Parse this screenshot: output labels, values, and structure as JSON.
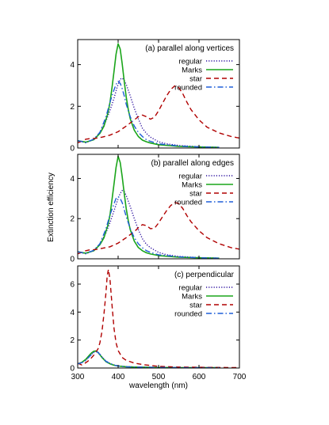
{
  "chart_data": {
    "type": "line",
    "xlabel": "wavelength (nm)",
    "ylabel": "Extinction efficiency",
    "xlim": [
      300,
      700
    ],
    "xticks": [
      300,
      400,
      500,
      600,
      700
    ],
    "grid": false,
    "legend_position": "top-right",
    "series_styles": {
      "regular": {
        "color": "#2b0f9e",
        "dash": "dotted"
      },
      "Marks": {
        "color": "#1aa51a",
        "dash": "solid"
      },
      "star": {
        "color": "#b00000",
        "dash": "dashed"
      },
      "rounded": {
        "color": "#1f5fd8",
        "dash": "dash-dot"
      }
    },
    "panels": [
      {
        "title": "(a) parallel along vertices",
        "ylim": [
          0,
          5.2
        ],
        "yticks": [
          0,
          2,
          4
        ],
        "series": [
          {
            "name": "regular",
            "x": [
              300,
              320,
              340,
              355,
              370,
              380,
              390,
              398,
              405,
              410,
              415,
              420,
              430,
              440,
              450,
              460,
              470,
              480,
              500,
              520,
              550,
              600,
              650
            ],
            "y": [
              0.35,
              0.25,
              0.42,
              0.75,
              1.3,
              1.8,
              2.4,
              2.95,
              3.3,
              3.35,
              3.25,
              3.05,
              2.5,
              1.9,
              1.4,
              0.95,
              0.7,
              0.52,
              0.3,
              0.2,
              0.12,
              0.06,
              0.03
            ]
          },
          {
            "name": "Marks",
            "x": [
              300,
              320,
              340,
              355,
              365,
              375,
              380,
              385,
              390,
              395,
              400,
              405,
              410,
              415,
              420,
              425,
              430,
              440,
              450,
              460,
              470,
              480,
              500,
              550,
              600,
              650
            ],
            "y": [
              0.35,
              0.28,
              0.4,
              0.7,
              1.05,
              1.7,
              2.2,
              2.9,
              3.7,
              4.5,
              5.0,
              4.75,
              4.05,
              3.2,
              2.45,
              1.85,
              1.4,
              0.85,
              0.55,
              0.38,
              0.3,
              0.24,
              0.16,
              0.08,
              0.05,
              0.03
            ]
          },
          {
            "name": "star",
            "x": [
              300,
              310,
              320,
              330,
              340,
              360,
              380,
              400,
              420,
              440,
              450,
              460,
              470,
              480,
              490,
              500,
              510,
              520,
              530,
              540,
              550,
              560,
              570,
              580,
              600,
              620,
              650,
              680,
              700
            ],
            "y": [
              0.25,
              0.32,
              0.42,
              0.45,
              0.45,
              0.52,
              0.62,
              0.78,
              1.05,
              1.35,
              1.5,
              1.58,
              1.5,
              1.38,
              1.48,
              1.78,
              2.15,
              2.5,
              2.8,
              2.98,
              2.9,
              2.6,
              2.2,
              1.85,
              1.35,
              1.0,
              0.72,
              0.55,
              0.48
            ]
          },
          {
            "name": "rounded",
            "x": [
              300,
              320,
              340,
              355,
              370,
              380,
              390,
              395,
              400,
              405,
              410,
              415,
              420,
              430,
              440,
              450,
              460,
              470,
              480,
              500,
              550,
              600,
              650
            ],
            "y": [
              0.35,
              0.27,
              0.42,
              0.75,
              1.5,
              2.2,
              2.8,
              3.05,
              3.2,
              3.1,
              2.85,
              2.5,
              2.1,
              1.5,
              1.05,
              0.75,
              0.55,
              0.4,
              0.32,
              0.2,
              0.1,
              0.05,
              0.03
            ]
          }
        ]
      },
      {
        "title": "(b) parallel along edges",
        "ylim": [
          0,
          5.2
        ],
        "yticks": [
          0,
          2,
          4
        ],
        "series": [
          {
            "name": "regular",
            "x": [
              300,
              320,
              340,
              355,
              370,
              380,
              390,
              400,
              405,
              410,
              415,
              420,
              430,
              440,
              450,
              460,
              470,
              480,
              500,
              520,
              550,
              600,
              650
            ],
            "y": [
              0.35,
              0.25,
              0.42,
              0.75,
              1.3,
              1.8,
              2.4,
              3.0,
              3.25,
              3.4,
              3.35,
              3.15,
              2.6,
              2.0,
              1.45,
              1.0,
              0.72,
              0.55,
              0.32,
              0.2,
              0.12,
              0.06,
              0.03
            ]
          },
          {
            "name": "Marks",
            "x": [
              300,
              320,
              340,
              355,
              365,
              375,
              380,
              385,
              390,
              395,
              400,
              405,
              410,
              415,
              420,
              425,
              430,
              440,
              450,
              460,
              470,
              480,
              500,
              550,
              600,
              650
            ],
            "y": [
              0.35,
              0.28,
              0.4,
              0.7,
              1.05,
              1.7,
              2.2,
              2.95,
              3.75,
              4.55,
              5.1,
              4.8,
              4.1,
              3.25,
              2.5,
              1.9,
              1.45,
              0.88,
              0.56,
              0.4,
              0.3,
              0.24,
              0.16,
              0.08,
              0.05,
              0.03
            ]
          },
          {
            "name": "star",
            "x": [
              300,
              310,
              320,
              330,
              340,
              360,
              380,
              400,
              420,
              440,
              450,
              460,
              470,
              480,
              490,
              500,
              510,
              520,
              530,
              540,
              550,
              560,
              570,
              580,
              600,
              620,
              650,
              680,
              700
            ],
            "y": [
              0.25,
              0.32,
              0.4,
              0.45,
              0.45,
              0.52,
              0.6,
              0.78,
              1.05,
              1.35,
              1.55,
              1.7,
              1.65,
              1.5,
              1.52,
              1.78,
              2.1,
              2.4,
              2.65,
              2.8,
              2.75,
              2.5,
              2.15,
              1.85,
              1.4,
              1.05,
              0.75,
              0.55,
              0.48
            ]
          },
          {
            "name": "rounded",
            "x": [
              300,
              320,
              340,
              355,
              370,
              380,
              390,
              395,
              400,
              405,
              410,
              415,
              420,
              430,
              440,
              450,
              460,
              470,
              480,
              500,
              550,
              600,
              650
            ],
            "y": [
              0.35,
              0.27,
              0.42,
              0.75,
              1.5,
              2.2,
              2.75,
              3.0,
              3.1,
              3.0,
              2.8,
              2.45,
              2.1,
              1.5,
              1.05,
              0.75,
              0.55,
              0.4,
              0.32,
              0.2,
              0.1,
              0.05,
              0.03
            ]
          }
        ]
      },
      {
        "title": "(c) perpendicular",
        "ylim": [
          0,
          7.3
        ],
        "yticks": [
          0,
          2,
          4,
          6
        ],
        "series": [
          {
            "name": "regular",
            "x": [
              300,
              310,
              320,
              330,
              340,
              345,
              350,
              355,
              360,
              370,
              380,
              390,
              400,
              420,
              450,
              500,
              550,
              600,
              650
            ],
            "y": [
              0.3,
              0.38,
              0.55,
              0.85,
              1.15,
              1.2,
              1.15,
              1.0,
              0.8,
              0.5,
              0.33,
              0.22,
              0.15,
              0.1,
              0.06,
              0.04,
              0.03,
              0.02,
              0.02
            ]
          },
          {
            "name": "Marks",
            "x": [
              300,
              310,
              320,
              330,
              335,
              340,
              345,
              350,
              355,
              360,
              370,
              380,
              390,
              400,
              420,
              450,
              500,
              550,
              600,
              650
            ],
            "y": [
              0.3,
              0.4,
              0.62,
              0.95,
              1.1,
              1.2,
              1.22,
              1.12,
              0.95,
              0.75,
              0.45,
              0.3,
              0.2,
              0.14,
              0.09,
              0.06,
              0.04,
              0.03,
              0.02,
              0.02
            ]
          },
          {
            "name": "star",
            "x": [
              300,
              310,
              320,
              330,
              340,
              350,
              355,
              360,
              365,
              370,
              373,
              376,
              380,
              385,
              390,
              395,
              400,
              410,
              420,
              440,
              460,
              480,
              500,
              550,
              600,
              650,
              700
            ],
            "y": [
              0.35,
              0.22,
              0.38,
              0.6,
              0.92,
              1.35,
              1.8,
              2.6,
              3.9,
              5.4,
              6.6,
              7.05,
              6.3,
              4.5,
              2.8,
              1.8,
              1.25,
              0.75,
              0.55,
              0.35,
              0.25,
              0.18,
              0.12,
              0.07,
              0.05,
              0.04,
              0.03
            ]
          },
          {
            "name": "rounded",
            "x": [
              300,
              310,
              320,
              330,
              340,
              345,
              350,
              355,
              360,
              370,
              380,
              390,
              400,
              420,
              450,
              500,
              550,
              600,
              650
            ],
            "y": [
              0.3,
              0.38,
              0.55,
              0.85,
              1.12,
              1.18,
              1.12,
              0.98,
              0.78,
              0.48,
              0.32,
              0.21,
              0.14,
              0.09,
              0.06,
              0.04,
              0.03,
              0.02,
              0.02
            ]
          }
        ]
      }
    ]
  }
}
